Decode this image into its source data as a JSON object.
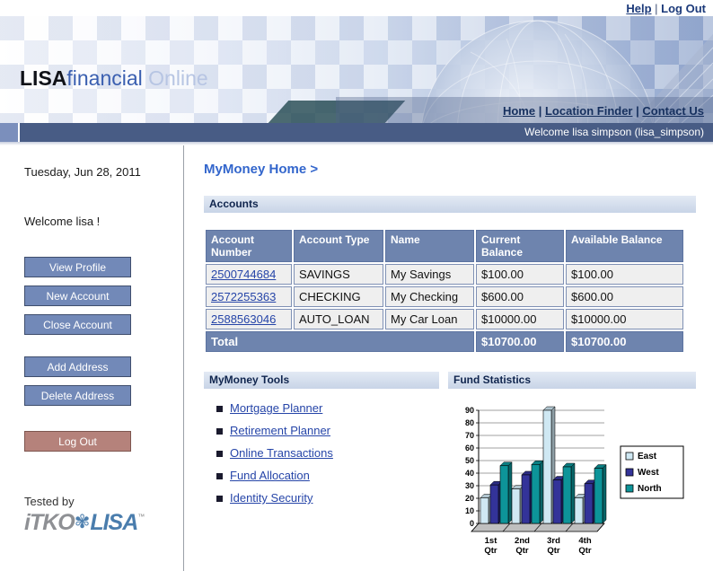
{
  "top_bar": {
    "help": "Help",
    "separator": "|",
    "logout": "Log Out"
  },
  "banner": {
    "logo_lisa": "LISA",
    "logo_financial": "financial",
    "logo_online": " Online",
    "separator": "|",
    "nav": [
      "Home",
      "Location Finder",
      "Contact Us"
    ]
  },
  "welcome_bar": {
    "text": "Welcome lisa simpson (lisa_simpson)"
  },
  "sidebar": {
    "date": "Tuesday, Jun 28, 2011",
    "welcome": "Welcome lisa !",
    "buttons_group1": [
      "View Profile",
      "New Account",
      "Close Account"
    ],
    "buttons_group2": [
      "Add Address",
      "Delete Address"
    ],
    "logout_button": "Log Out",
    "tested_by": "Tested by",
    "logo": {
      "itko": "iTKO",
      "flower_icon": "lisa-flower-icon",
      "lisa": "LISA",
      "tm": "™"
    }
  },
  "main": {
    "breadcrumb": "MyMoney Home >",
    "accounts": {
      "title": "Accounts",
      "columns": [
        "Account Number",
        "Account Type",
        "Name",
        "Current Balance",
        "Available Balance"
      ],
      "rows": [
        [
          "2500744684",
          "SAVINGS",
          "My Savings",
          "$100.00",
          "$100.00"
        ],
        [
          "2572255363",
          "CHECKING",
          "My Checking",
          "$600.00",
          "$600.00"
        ],
        [
          "2588563046",
          "AUTO_LOAN",
          "My Car Loan",
          "$10000.00",
          "$10000.00"
        ]
      ],
      "total_label": "Total",
      "total_current": "$10700.00",
      "total_available": "$10700.00"
    },
    "tools": {
      "title": "MyMoney Tools",
      "links": [
        "Mortgage Planner",
        "Retirement Planner",
        "Online Transactions",
        "Fund Allocation",
        "Identity Security"
      ]
    },
    "fund_stats": {
      "title": "Fund Statistics"
    }
  },
  "palette": {
    "slate_header": "#6e84ae",
    "section_bar": "#ccd8e9",
    "welcome_bar": "#485c85",
    "button_blue": "#7289b8",
    "logout_red": "#b5827b",
    "link_blue": "#2645a8",
    "brand_blue": "#3a5fb0"
  },
  "chart_data": {
    "type": "bar",
    "style": "3d-column",
    "title": "",
    "xlabel": "",
    "ylabel": "",
    "categories": [
      "1st Qtr",
      "2nd Qtr",
      "3rd Qtr",
      "4th Qtr"
    ],
    "series": [
      {
        "name": "East",
        "color": "#cfe8f3",
        "values": [
          20.4,
          27.4,
          90,
          20.4
        ]
      },
      {
        "name": "West",
        "color": "#333399",
        "values": [
          30.6,
          38.6,
          34.6,
          31.6
        ]
      },
      {
        "name": "North",
        "color": "#0d9499",
        "values": [
          45.9,
          46.9,
          45,
          43.9
        ]
      }
    ],
    "ylim": [
      0,
      90
    ],
    "ytick_step": 10,
    "grid": true,
    "legend_position": "right"
  }
}
